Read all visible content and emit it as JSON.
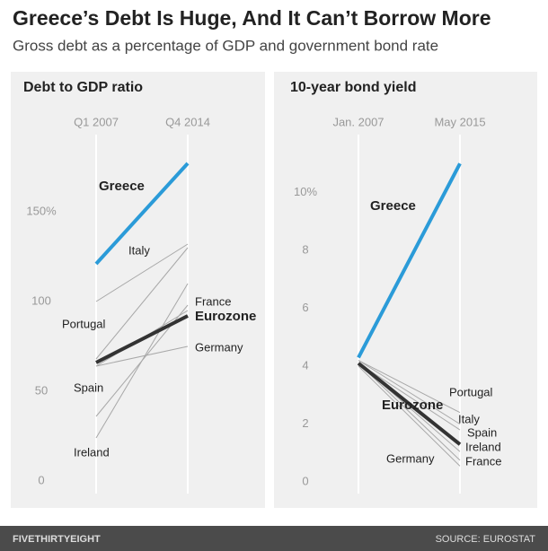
{
  "title": "Greece’s Debt Is Huge, And It Can’t Borrow More",
  "subtitle": "Gross debt as a percentage of GDP and government bond rate",
  "brand": "FIVETHIRTYEIGHT",
  "source": "SOURCE: EUROSTAT",
  "chart_data": [
    {
      "type": "slope",
      "title": "Debt to GDP ratio",
      "categories": [
        "Q1 2007",
        "Q4 2014"
      ],
      "ylim": [
        -7,
        193
      ],
      "yticks": [
        0,
        50,
        100,
        {
          "value": 150,
          "label": "150%"
        }
      ],
      "series": [
        {
          "name": "Greece",
          "color": "#2b9bd8",
          "highlight": true,
          "values": [
            121,
            177
          ]
        },
        {
          "name": "Italy",
          "color": "#a8a8a8",
          "values": [
            100,
            132
          ]
        },
        {
          "name": "Portugal",
          "color": "#a8a8a8",
          "values": [
            68,
            130
          ]
        },
        {
          "name": "Eurozone",
          "color": "#333333",
          "highlight": true,
          "values": [
            66,
            92
          ]
        },
        {
          "name": "France",
          "color": "#a8a8a8",
          "values": [
            64,
            95
          ]
        },
        {
          "name": "Germany",
          "color": "#a8a8a8",
          "values": [
            64,
            75
          ]
        },
        {
          "name": "Spain",
          "color": "#a8a8a8",
          "values": [
            36,
            98
          ]
        },
        {
          "name": "Ireland",
          "color": "#a8a8a8",
          "values": [
            24,
            110
          ]
        }
      ]
    },
    {
      "type": "slope",
      "title": "10-year bond yield",
      "categories": [
        "Jan. 2007",
        "May 2015"
      ],
      "ylim": [
        -0.4,
        12
      ],
      "yticks": [
        0,
        2,
        4,
        6,
        8,
        {
          "value": 10,
          "label": "10%"
        }
      ],
      "series": [
        {
          "name": "Greece",
          "color": "#2b9bd8",
          "highlight": true,
          "values": [
            4.3,
            11
          ]
        },
        {
          "name": "Portugal",
          "color": "#a8a8a8",
          "values": [
            4.2,
            2.4
          ]
        },
        {
          "name": "Eurozone",
          "color": "#333333",
          "highlight": true,
          "values": [
            4.1,
            1.3
          ]
        },
        {
          "name": "Italy",
          "color": "#a8a8a8",
          "values": [
            4.2,
            2.0
          ]
        },
        {
          "name": "Spain",
          "color": "#a8a8a8",
          "values": [
            4.1,
            1.8
          ]
        },
        {
          "name": "Ireland",
          "color": "#a8a8a8",
          "values": [
            4.1,
            1.05
          ]
        },
        {
          "name": "Germany",
          "color": "#a8a8a8",
          "values": [
            4.0,
            0.55
          ]
        },
        {
          "name": "France",
          "color": "#a8a8a8",
          "values": [
            4.1,
            0.75
          ]
        }
      ]
    }
  ]
}
